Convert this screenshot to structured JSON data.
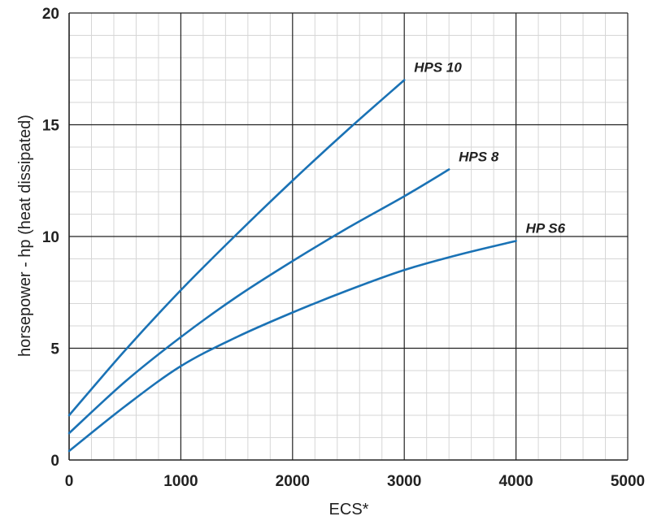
{
  "chart_data": {
    "type": "line",
    "title": "",
    "xlabel": "ECS*",
    "ylabel": "horsepower - hp  (heat dissipated)",
    "xlim": [
      0,
      5000
    ],
    "ylim": [
      0,
      20
    ],
    "x_ticks": [
      "0",
      "1000",
      "2000",
      "3000",
      "4000",
      "5000"
    ],
    "y_ticks": [
      "0",
      "5",
      "10",
      "15",
      "20"
    ],
    "grid": {
      "major": true,
      "minor": true,
      "minor_per_major": 5
    },
    "colors": {
      "series": "#1a72b5",
      "major_grid": "#222222",
      "minor_grid": "#d6d6d6"
    },
    "series": [
      {
        "name": "HPS 10",
        "x": [
          0,
          500,
          1000,
          1500,
          2000,
          2500,
          3000
        ],
        "y": [
          2.0,
          4.9,
          7.6,
          10.1,
          12.5,
          14.8,
          17.0
        ]
      },
      {
        "name": "HPS 8",
        "x": [
          0,
          500,
          1000,
          1500,
          2000,
          2500,
          3000,
          3400
        ],
        "y": [
          1.2,
          3.5,
          5.5,
          7.3,
          8.9,
          10.4,
          11.8,
          13.0
        ]
      },
      {
        "name": "HP S6",
        "x": [
          0,
          500,
          1000,
          1500,
          2000,
          2500,
          3000,
          3500,
          4000
        ],
        "y": [
          0.4,
          2.4,
          4.2,
          5.5,
          6.6,
          7.6,
          8.5,
          9.2,
          9.8
        ]
      }
    ]
  }
}
